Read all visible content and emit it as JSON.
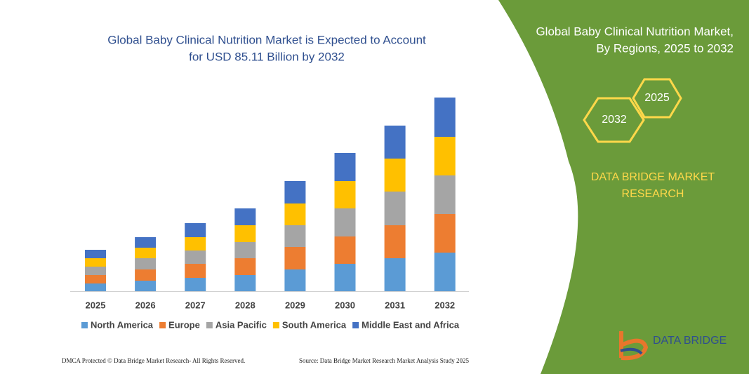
{
  "chart_data": {
    "type": "stacked-bar",
    "title": [
      "Global Baby Clinical Nutrition Market is Expected to Account",
      "for USD 85.11 Billion by 2032"
    ],
    "categories": [
      "2025",
      "2026",
      "2027",
      "2028",
      "2029",
      "2030",
      "2031",
      "2032"
    ],
    "series": [
      {
        "name": "North America",
        "color": "#5b9bd5",
        "values": [
          11,
          15,
          19,
          23,
          31,
          39,
          47,
          55
        ]
      },
      {
        "name": "Europe",
        "color": "#ed7d31",
        "values": [
          12,
          16,
          20,
          24,
          32,
          39,
          47,
          55
        ]
      },
      {
        "name": "Asia Pacific",
        "color": "#a5a5a5",
        "values": [
          12,
          16,
          19,
          23,
          31,
          40,
          48,
          55
        ]
      },
      {
        "name": "South America",
        "color": "#ffc000",
        "values": [
          12,
          15,
          19,
          24,
          31,
          39,
          47,
          55
        ]
      },
      {
        "name": "Middle East and Africa",
        "color": "#4472c4",
        "values": [
          12,
          15,
          20,
          24,
          32,
          40,
          47,
          56
        ]
      }
    ]
  },
  "panel": {
    "title": [
      "Global Baby Clinical Nutrition Market,",
      "By Regions, 2025 to 2032"
    ],
    "hex_start": "2025",
    "hex_end": "2032",
    "brand": [
      "DATA BRIDGE MARKET",
      "RESEARCH"
    ]
  },
  "logo": "DATA BRIDGE",
  "footer": {
    "left": "DMCA Protected © Data Bridge Market Research-  All Rights Reserved.",
    "right": "Source: Data Bridge Market Research  Market Analysis Study 2025"
  }
}
